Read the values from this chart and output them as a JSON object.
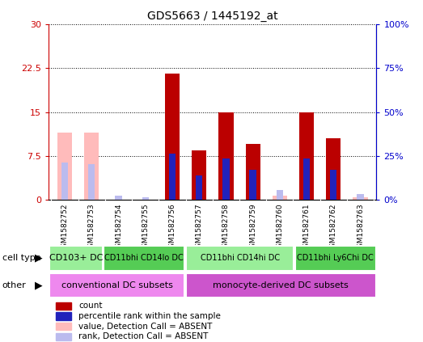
{
  "title": "GDS5663 / 1445192_at",
  "samples": [
    "GSM1582752",
    "GSM1582753",
    "GSM1582754",
    "GSM1582755",
    "GSM1582756",
    "GSM1582757",
    "GSM1582758",
    "GSM1582759",
    "GSM1582760",
    "GSM1582761",
    "GSM1582762",
    "GSM1582763"
  ],
  "red_bars": [
    null,
    null,
    null,
    null,
    21.5,
    8.5,
    15.0,
    9.5,
    null,
    15.0,
    10.5,
    null
  ],
  "pink_bars": [
    11.5,
    11.5,
    null,
    null,
    null,
    null,
    null,
    null,
    0.8,
    null,
    null,
    0.5
  ],
  "blue_bars": [
    null,
    null,
    null,
    null,
    26.5,
    14.0,
    23.5,
    17.0,
    null,
    23.5,
    17.0,
    null
  ],
  "lightblue_bars": [
    21.5,
    20.5,
    2.5,
    1.8,
    null,
    null,
    null,
    null,
    5.5,
    null,
    null,
    3.5
  ],
  "ylim": [
    0,
    30
  ],
  "yticks": [
    0,
    7.5,
    15,
    22.5,
    30
  ],
  "ytick_labels": [
    "0",
    "7.5",
    "15",
    "22.5",
    "30"
  ],
  "y2lim": [
    0,
    100
  ],
  "y2ticks": [
    0,
    25,
    50,
    75,
    100
  ],
  "y2tick_labels": [
    "0%",
    "25%",
    "50%",
    "75%",
    "100%"
  ],
  "cell_type_groups": [
    {
      "label": "CD103+ DC",
      "start": 0,
      "end": 2,
      "color": "#99EE99"
    },
    {
      "label": "CD11bhi CD14lo DC",
      "start": 2,
      "end": 5,
      "color": "#55CC55"
    },
    {
      "label": "CD11bhi CD14hi DC",
      "start": 5,
      "end": 9,
      "color": "#99EE99"
    },
    {
      "label": "CD11bhi Ly6Chi DC",
      "start": 9,
      "end": 12,
      "color": "#55CC55"
    }
  ],
  "other_groups": [
    {
      "label": "conventional DC subsets",
      "start": 0,
      "end": 5,
      "color": "#EE88EE"
    },
    {
      "label": "monocyte-derived DC subsets",
      "start": 5,
      "end": 12,
      "color": "#CC55CC"
    }
  ],
  "bar_color_red": "#BB0000",
  "bar_color_pink": "#FFBBBB",
  "bar_color_blue": "#2222BB",
  "bar_color_lightblue": "#BBBBEE",
  "bar_width": 0.55,
  "blue_bar_width": 0.25,
  "cell_type_label": "cell type",
  "other_label": "other",
  "legend_items": [
    {
      "label": "count",
      "color": "#BB0000"
    },
    {
      "label": "percentile rank within the sample",
      "color": "#2222BB"
    },
    {
      "label": "value, Detection Call = ABSENT",
      "color": "#FFBBBB"
    },
    {
      "label": "rank, Detection Call = ABSENT",
      "color": "#BBBBEE"
    }
  ],
  "left_axis_color": "#CC0000",
  "right_axis_color": "#0000CC",
  "plot_bg": "#FFFFFF",
  "xticklabel_area_bg": "#CCCCCC",
  "fig_bg": "#FFFFFF"
}
